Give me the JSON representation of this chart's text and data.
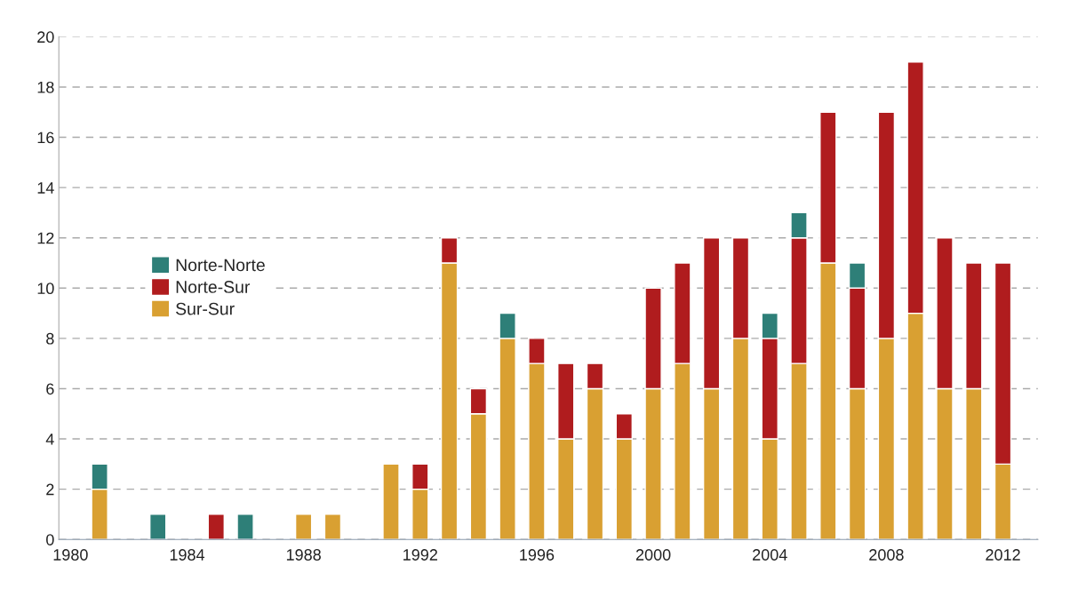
{
  "chart_data": {
    "type": "bar",
    "stacked": true,
    "x": [
      1981,
      1982,
      1983,
      1984,
      1985,
      1986,
      1987,
      1988,
      1989,
      1990,
      1991,
      1992,
      1993,
      1994,
      1995,
      1996,
      1997,
      1998,
      1999,
      2000,
      2001,
      2002,
      2003,
      2004,
      2005,
      2006,
      2007,
      2008,
      2009,
      2010,
      2011,
      2012
    ],
    "series": [
      {
        "name": "Sur-Sur",
        "color": "#d9a032",
        "values": [
          2,
          null,
          null,
          null,
          null,
          null,
          null,
          1,
          1,
          null,
          3,
          2,
          11,
          5,
          8,
          7,
          4,
          6,
          4,
          6,
          7,
          6,
          8,
          4,
          7,
          11,
          6,
          8,
          9,
          6,
          6,
          3
        ]
      },
      {
        "name": "Norte-Sur",
        "color": "#b01c1e",
        "values": [
          null,
          null,
          null,
          null,
          1,
          null,
          null,
          null,
          null,
          null,
          null,
          1,
          1,
          1,
          null,
          1,
          3,
          1,
          1,
          4,
          4,
          6,
          4,
          4,
          5,
          6,
          4,
          9,
          10,
          6,
          5,
          8
        ]
      },
      {
        "name": "Norte-Norte",
        "color": "#2e7f78",
        "values": [
          1,
          null,
          1,
          null,
          null,
          1,
          null,
          null,
          null,
          null,
          null,
          null,
          null,
          null,
          1,
          null,
          null,
          null,
          null,
          null,
          null,
          null,
          null,
          1,
          1,
          null,
          1,
          null,
          null,
          null,
          null,
          null
        ]
      }
    ],
    "xlim": [
      1979.6,
      2013.2
    ],
    "xticks": [
      1980,
      1984,
      1988,
      1992,
      1996,
      2000,
      2004,
      2008,
      2012
    ],
    "ylim": [
      0,
      20
    ],
    "yticks": [
      0,
      2,
      4,
      6,
      8,
      10,
      12,
      14,
      16,
      18,
      20
    ],
    "grid": "y",
    "legend": "center left"
  }
}
